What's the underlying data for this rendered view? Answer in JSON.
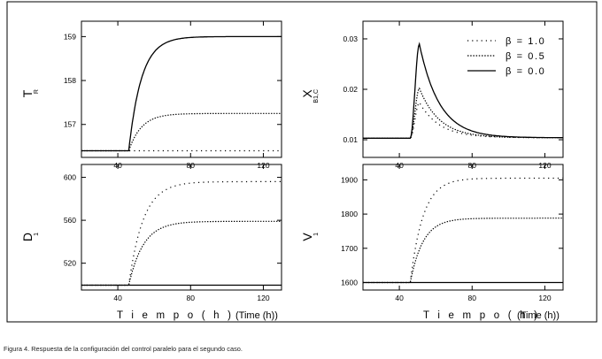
{
  "caption": "Figura 4. Respuesta de la configuración del control paralelo para el segundo caso.",
  "xlabel": "T i e m p o   ( h )",
  "xlabel_en": "(Time (h))",
  "chart_data": [
    {
      "id": "TR",
      "type": "line",
      "ylabel": "T",
      "ylabel_sub": "R",
      "xlim": [
        20,
        130
      ],
      "ylim": [
        156.25,
        159.35
      ],
      "xticks": [
        40,
        80,
        120
      ],
      "yticks": [
        157,
        158,
        159
      ],
      "ytick_labels": [
        "157",
        "158",
        "159"
      ],
      "tick_side": "right",
      "step_x": 46,
      "tau": 7,
      "series": [
        {
          "beta": "1.0",
          "initial": 156.4,
          "final": 156.4
        },
        {
          "beta": "0.5",
          "initial": 156.4,
          "final": 157.25
        },
        {
          "beta": "0.0",
          "initial": 156.4,
          "final": 159.0
        }
      ]
    },
    {
      "id": "XB1C",
      "type": "line",
      "ylabel": "X",
      "ylabel_sub": "B1,C",
      "xlim": [
        20,
        130
      ],
      "ylim": [
        0.0065,
        0.0335
      ],
      "xticks": [
        40,
        80,
        120
      ],
      "yticks": [
        0.01,
        0.02,
        0.03
      ],
      "ytick_labels": [
        "0.01",
        "0.02",
        "0.03"
      ],
      "tick_side": "left",
      "step_x": 46,
      "tau": 11,
      "series": [
        {
          "beta": "1.0",
          "initial": 0.0103,
          "peak": 0.0174,
          "final": 0.0104
        },
        {
          "beta": "0.5",
          "initial": 0.0103,
          "peak": 0.0202,
          "final": 0.0104
        },
        {
          "beta": "0.0",
          "initial": 0.0103,
          "peak": 0.029,
          "final": 0.0104
        }
      ]
    },
    {
      "id": "D1",
      "type": "line",
      "ylabel": "D",
      "ylabel_sub": "1",
      "xlim": [
        20,
        130
      ],
      "ylim": [
        495,
        612
      ],
      "xticks": [
        40,
        80,
        120
      ],
      "yticks": [
        520,
        560,
        600
      ],
      "ytick_labels": [
        "520",
        "560",
        "600"
      ],
      "tick_side": "right",
      "step_x": 46,
      "tau": 8,
      "series": [
        {
          "beta": "1.0",
          "initial": 499.5,
          "final": 596
        },
        {
          "beta": "0.5",
          "initial": 499.5,
          "final": 559
        },
        {
          "beta": "0.0",
          "initial": 499.5,
          "final": 499.5
        }
      ]
    },
    {
      "id": "V1",
      "type": "line",
      "ylabel": "V",
      "ylabel_sub": "1",
      "xlim": [
        20,
        130
      ],
      "ylim": [
        1578,
        1945
      ],
      "xticks": [
        40,
        80,
        120
      ],
      "yticks": [
        1600,
        1700,
        1800,
        1900
      ],
      "ytick_labels": [
        "1600",
        "1700",
        "1800",
        "1900"
      ],
      "tick_side": "left",
      "step_x": 46,
      "tau": 7,
      "series": [
        {
          "beta": "1.0",
          "initial": 1600,
          "final": 1905
        },
        {
          "beta": "0.5",
          "initial": 1600,
          "final": 1788
        },
        {
          "beta": "0.0",
          "initial": 1600,
          "final": 1600
        }
      ]
    }
  ],
  "legend": {
    "entries": [
      {
        "label": "β = 1.0",
        "style": "sparse-dot"
      },
      {
        "label": "β = 0.5",
        "style": "dot"
      },
      {
        "label": "β = 0.0",
        "style": "solid"
      }
    ]
  }
}
